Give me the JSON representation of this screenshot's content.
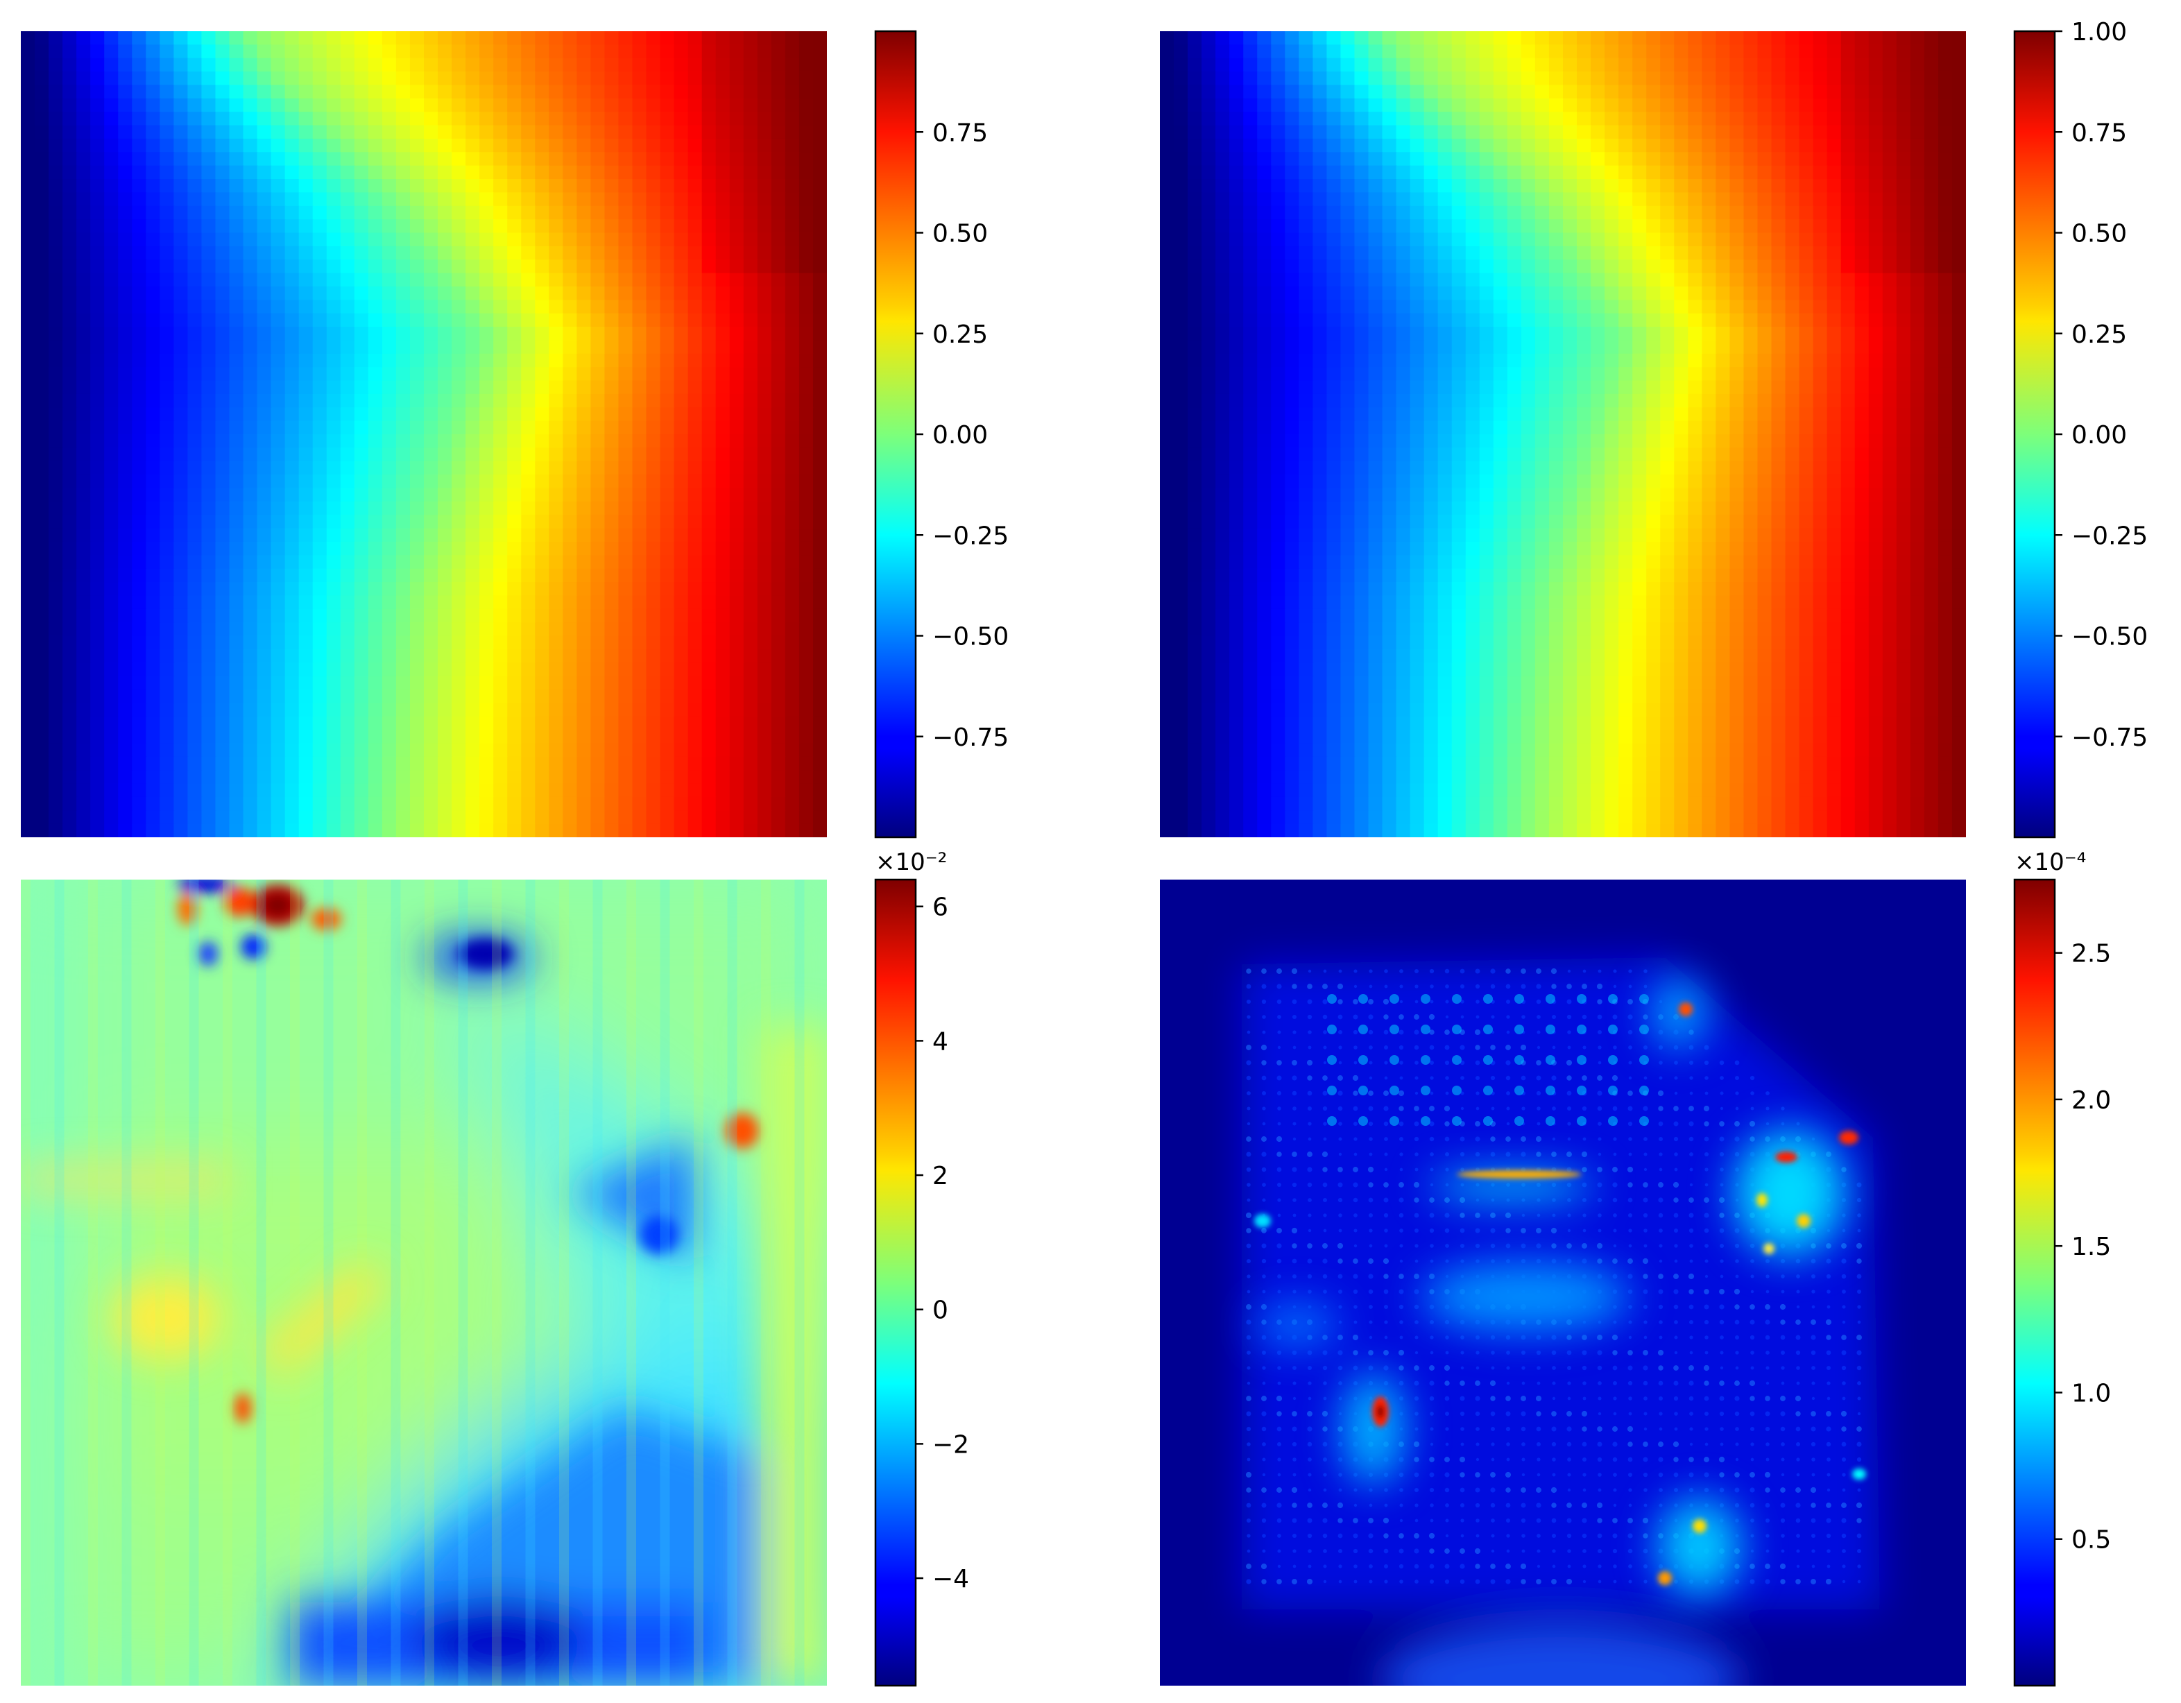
{
  "chart_data": [
    {
      "type": "heatmap",
      "panel": "top-left",
      "colormap": "jet",
      "axes": "off",
      "vmin": -1.0,
      "vmax": 1.0,
      "colorbar": {
        "ticks": [
          0.75,
          0.5,
          0.25,
          0.0,
          -0.25,
          -0.5,
          -0.75
        ],
        "tick_labels": [
          "0.75",
          "0.50",
          "0.25",
          "0.00",
          "−0.25",
          "−0.50",
          "−0.75"
        ],
        "exponent_label": ""
      }
    },
    {
      "type": "heatmap",
      "panel": "top-right",
      "colormap": "jet",
      "axes": "off",
      "vmin": -1.0,
      "vmax": 1.0,
      "colorbar": {
        "ticks": [
          1.0,
          0.75,
          0.5,
          0.25,
          0.0,
          -0.25,
          -0.5,
          -0.75
        ],
        "tick_labels": [
          "1.00",
          "0.75",
          "0.50",
          "0.25",
          "0.00",
          "−0.25",
          "−0.50",
          "−0.75"
        ],
        "exponent_label": ""
      }
    },
    {
      "type": "heatmap",
      "panel": "bottom-left",
      "colormap": "jet",
      "axes": "off",
      "vmin": -5.6,
      "vmax": 6.4,
      "colorbar": {
        "ticks": [
          6,
          4,
          2,
          0,
          -2,
          -4
        ],
        "tick_labels": [
          "6",
          "4",
          "2",
          "0",
          "−2",
          "−4"
        ],
        "exponent_label": "×10⁻²"
      }
    },
    {
      "type": "heatmap",
      "panel": "bottom-right",
      "colormap": "jet",
      "axes": "off",
      "vmin": 0.0,
      "vmax": 2.75,
      "colorbar": {
        "ticks": [
          2.5,
          2.0,
          1.5,
          1.0,
          0.5
        ],
        "tick_labels": [
          "2.5",
          "2.0",
          "1.5",
          "1.0",
          "0.5"
        ],
        "exponent_label": "×10⁻⁴"
      }
    }
  ]
}
